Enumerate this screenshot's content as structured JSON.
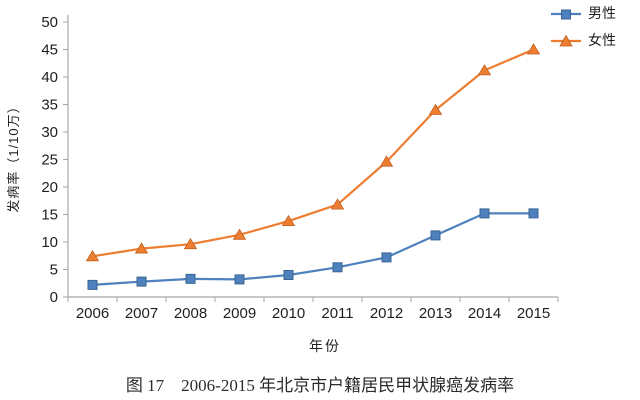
{
  "figure": {
    "caption": "图 17　2006-2015 年北京市户籍居民甲状腺癌发病率"
  },
  "chart_data": {
    "type": "line",
    "title": "",
    "xlabel": "年份",
    "ylabel": "发病率（1/10万）",
    "categories": [
      "2006",
      "2007",
      "2008",
      "2009",
      "2010",
      "2011",
      "2012",
      "2013",
      "2014",
      "2015"
    ],
    "series": [
      {
        "name": "男性",
        "marker": "square",
        "color": "#4E81BD",
        "marker_edge": "#3A6591",
        "values": [
          2.2,
          2.8,
          3.3,
          3.2,
          4.0,
          5.4,
          7.2,
          11.2,
          15.2,
          15.2
        ]
      },
      {
        "name": "女性",
        "marker": "triangle",
        "color": "#ED7D31",
        "marker_edge": "#C05F1F",
        "values": [
          7.4,
          8.8,
          9.6,
          11.3,
          13.8,
          16.8,
          24.6,
          34.0,
          41.2,
          45.0
        ]
      }
    ],
    "ylim": [
      0,
      50
    ],
    "ytick_step": 5,
    "grid": false,
    "legend_position": "top-right",
    "axis_color": "#A6A6A6",
    "text_color": "#1f1f1f"
  }
}
